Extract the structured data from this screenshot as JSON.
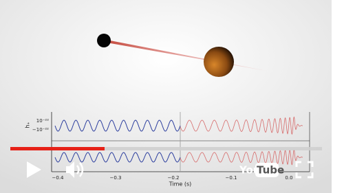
{
  "video": {
    "plot": {
      "ylabel": "h₊",
      "yticks": [
        "10⁻²²",
        "−10⁻²²"
      ],
      "xticks": [
        "−0.4",
        "−0.3",
        "−0.2",
        "−0.1",
        "0.0"
      ],
      "xlabel": "Time (s)"
    },
    "logo": {
      "you": "You",
      "tube": "Tube"
    }
  }
}
